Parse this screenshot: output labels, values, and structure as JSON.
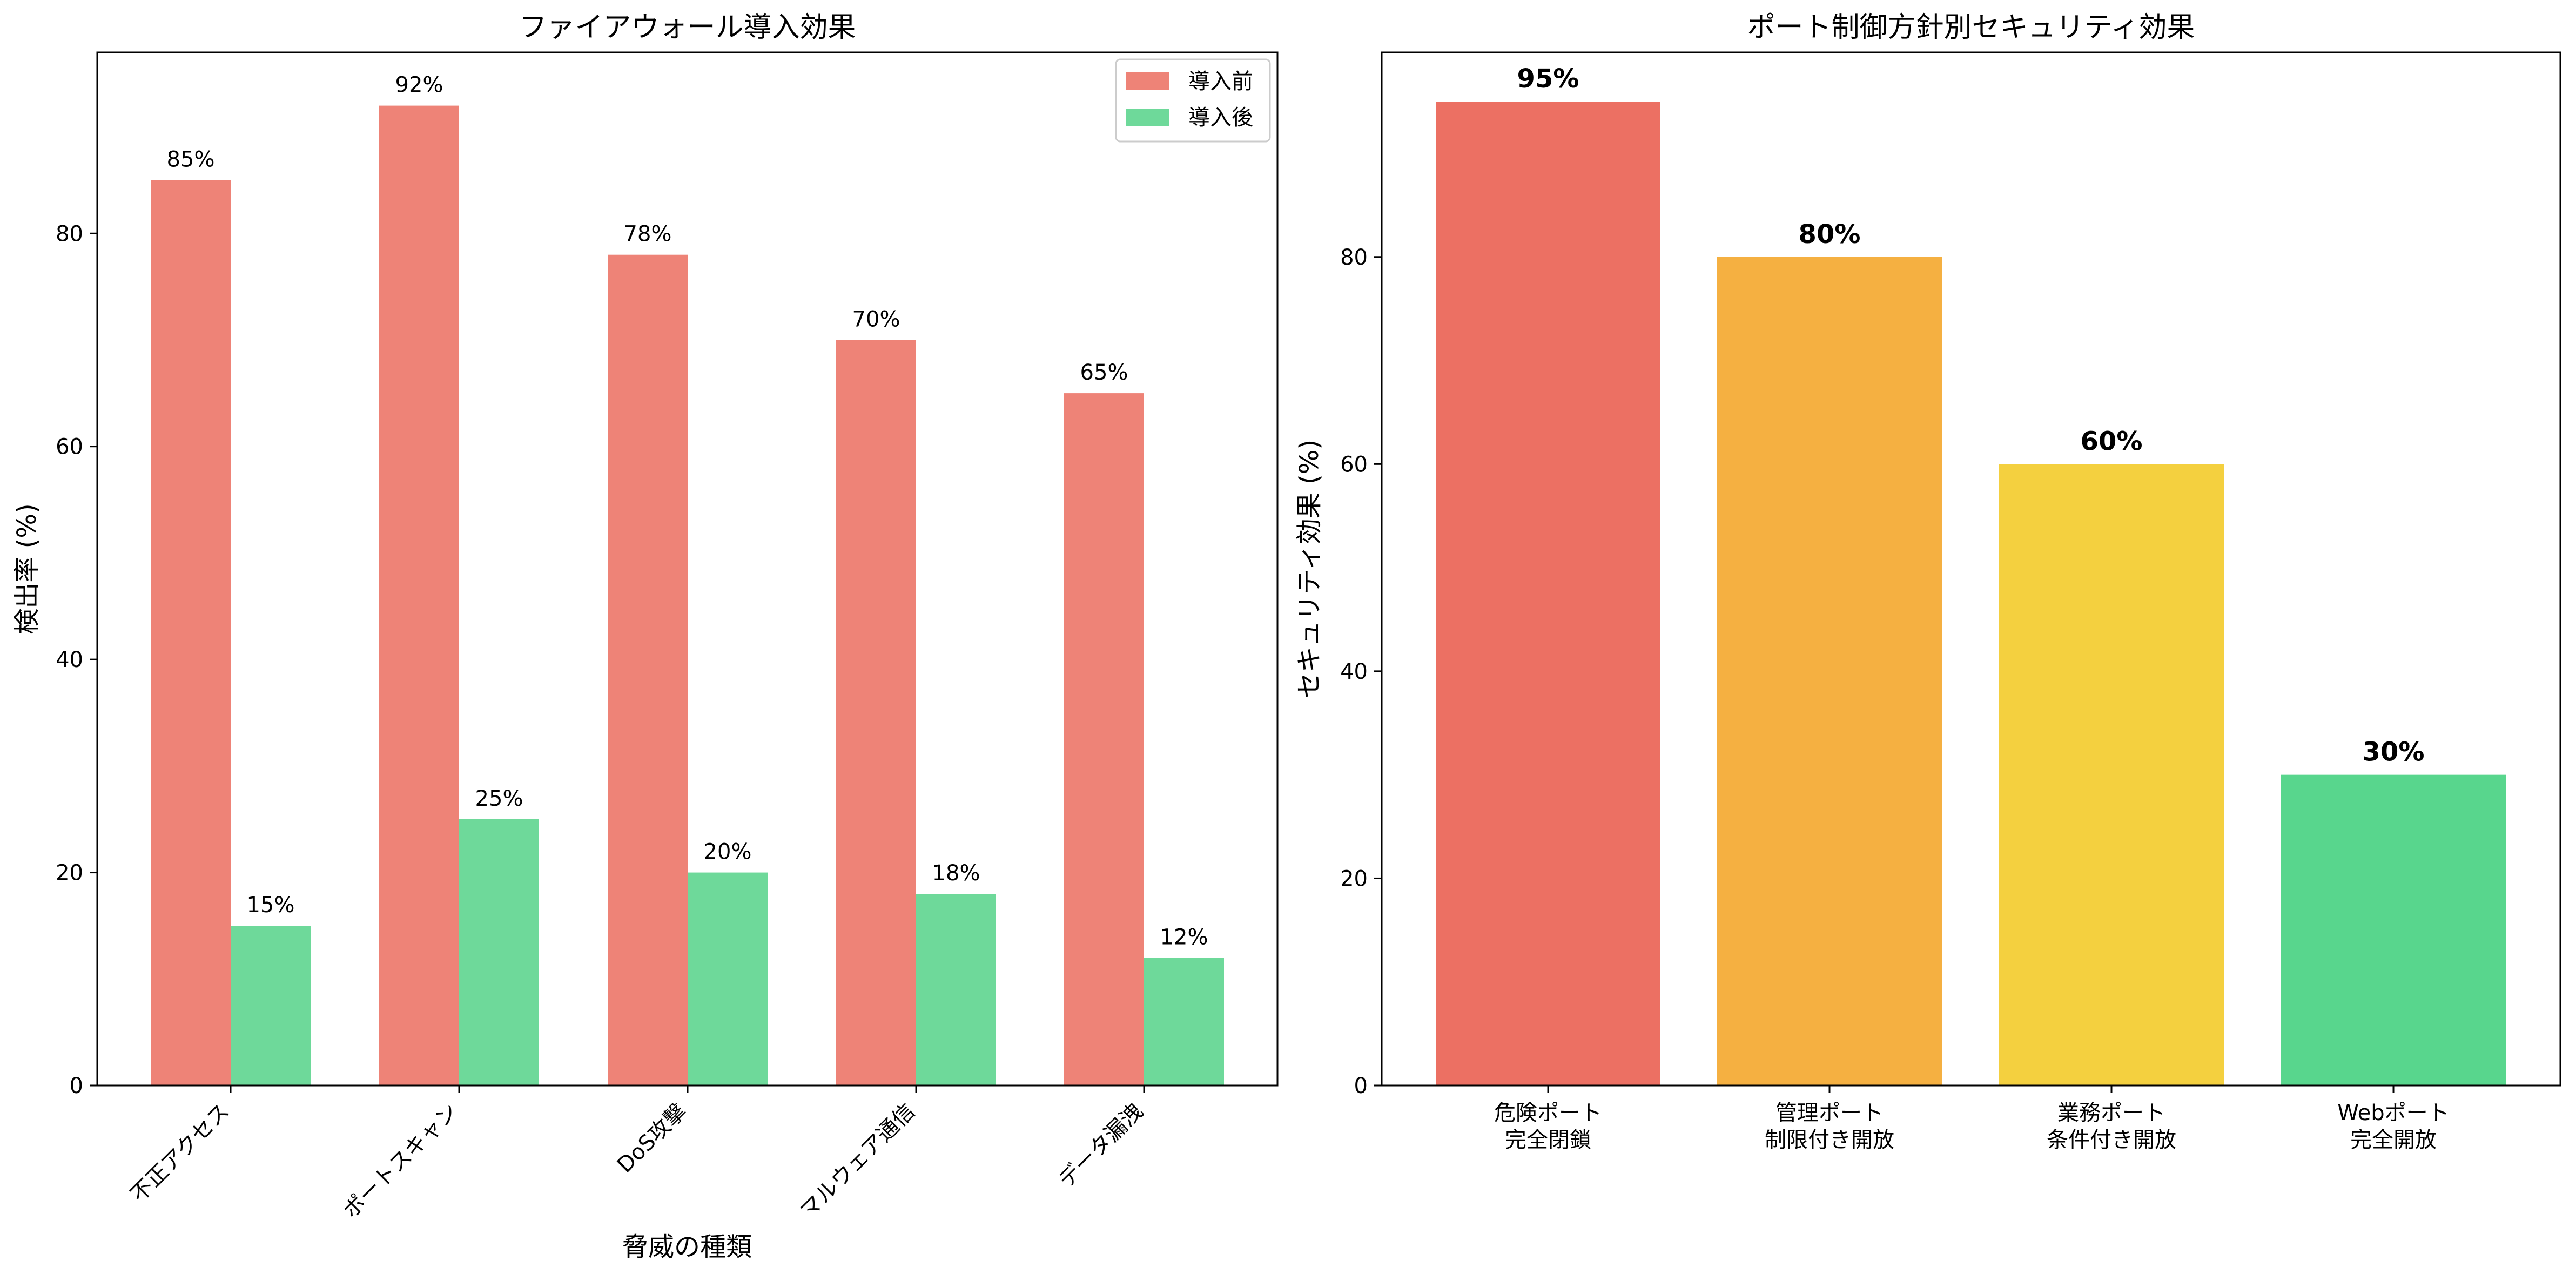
{
  "chart_data": [
    {
      "type": "bar",
      "title": "ファイアウォール導入効果",
      "xlabel": "脅威の種類",
      "ylabel": "検出率 (%)",
      "ylim": [
        0,
        97
      ],
      "yticks": [
        0,
        20,
        40,
        60,
        80
      ],
      "categories": [
        "不正アクセス",
        "ポートスキャン",
        "DoS攻撃",
        "マルウェア通信",
        "データ漏洩"
      ],
      "series": [
        {
          "name": "導入前",
          "values": [
            85,
            92,
            78,
            70,
            65
          ],
          "labels": [
            "85%",
            "92%",
            "78%",
            "70%",
            "65%"
          ],
          "color": "#ee8377"
        },
        {
          "name": "導入後",
          "values": [
            15,
            25,
            20,
            18,
            12
          ],
          "labels": [
            "15%",
            "25%",
            "20%",
            "18%",
            "12%"
          ],
          "color": "#6ed99a"
        }
      ],
      "legend": "top-right",
      "grid": false
    },
    {
      "type": "bar",
      "title": "ポート制御方針別セキュリティ効果",
      "xlabel": "",
      "ylabel": "セキュリティ効果 (%)",
      "ylim": [
        0,
        99.75
      ],
      "yticks": [
        0,
        20,
        40,
        60,
        80
      ],
      "categories": [
        [
          "危険ポート",
          "完全閉鎖"
        ],
        [
          "管理ポート",
          "制限付き開放"
        ],
        [
          "業務ポート",
          "条件付き開放"
        ],
        [
          "Webポート",
          "完全開放"
        ]
      ],
      "values": [
        95,
        80,
        60,
        30
      ],
      "labels": [
        "95%",
        "80%",
        "60%",
        "30%"
      ],
      "colors": [
        "#ec7063",
        "#f5b041",
        "#f4d03f",
        "#58d68d"
      ],
      "grid": false
    }
  ]
}
